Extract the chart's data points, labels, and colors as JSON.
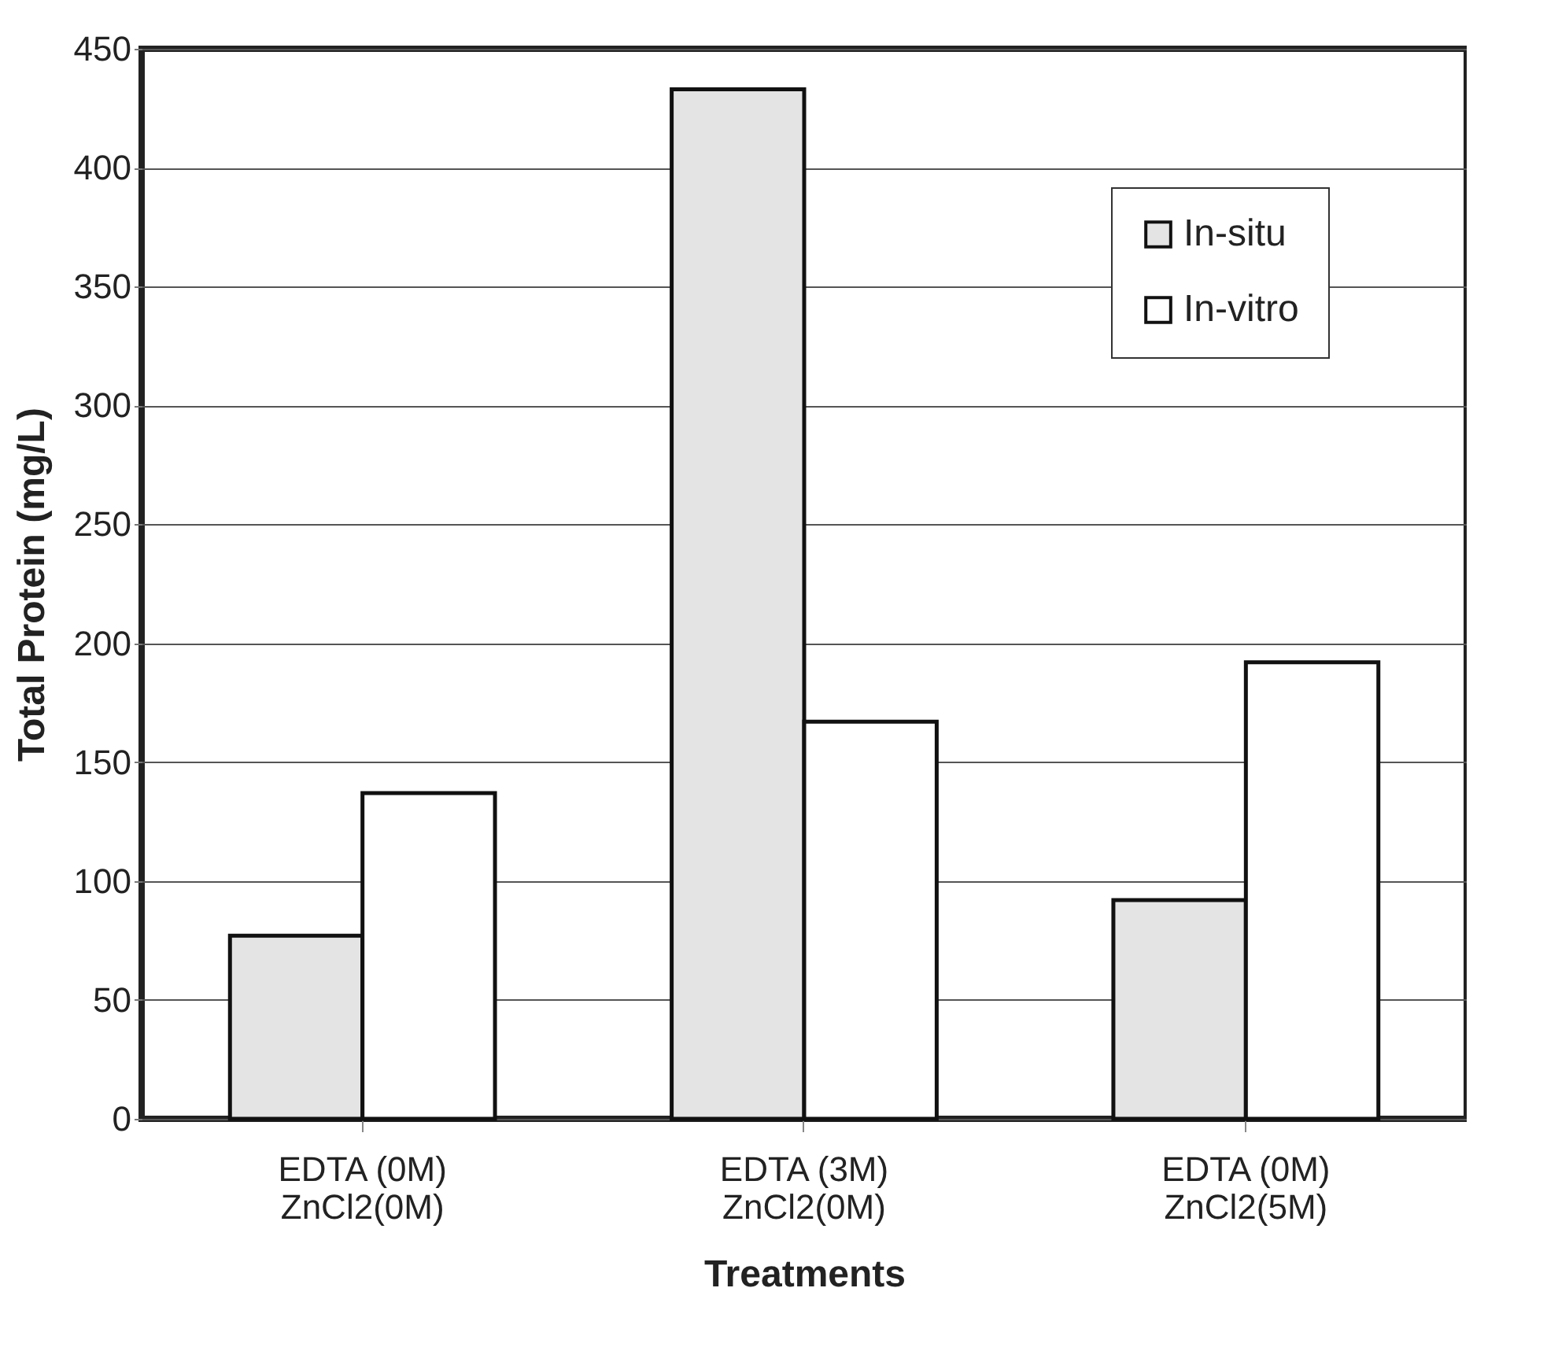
{
  "chart_data": {
    "type": "bar",
    "xlabel": "Treatments",
    "ylabel": "Total Protein (mg/L)",
    "categories": [
      "EDTA (0M)\nZnCl2(0M)",
      "EDTA (3M)\nZnCl2(0M)",
      "EDTA (0M)\nZnCl2(5M)"
    ],
    "series": [
      {
        "name": "In-situ",
        "color": "#e4e4e4",
        "values": [
          77,
          433,
          92
        ]
      },
      {
        "name": "In-vitro",
        "color": "#ffffff",
        "values": [
          137,
          167,
          192
        ]
      }
    ],
    "ylim": [
      0,
      450
    ],
    "yticks": [
      0,
      50,
      100,
      150,
      200,
      250,
      300,
      350,
      400,
      450
    ],
    "grid": "y",
    "legend": "top right"
  }
}
